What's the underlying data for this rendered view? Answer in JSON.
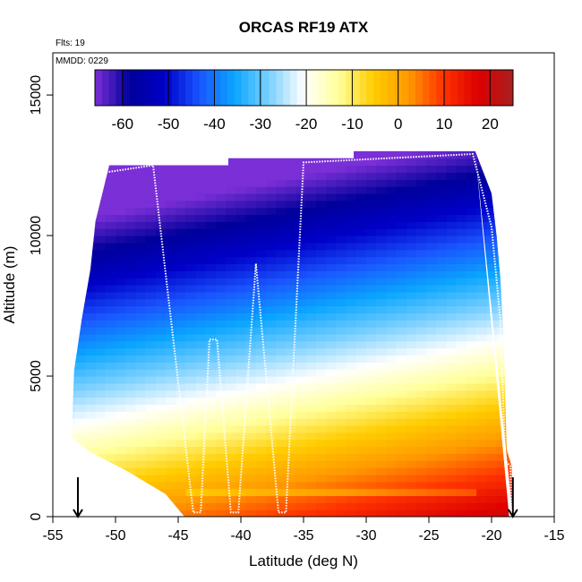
{
  "chart_data": {
    "type": "heatmap",
    "title": "ORCAS RF19 ATX",
    "xlabel": "Latitude (deg N)",
    "ylabel": "Altitude (m)",
    "xlim": [
      -55,
      -15
    ],
    "ylim": [
      0,
      16500
    ],
    "x_ticks": [
      "-55",
      "-50",
      "-45",
      "-40",
      "-35",
      "-30",
      "-25",
      "-20",
      "-15"
    ],
    "x_tick_values": [
      -55,
      -50,
      -45,
      -40,
      -35,
      -30,
      -25,
      -20,
      -15
    ],
    "y_ticks": [
      "0",
      "5000",
      "10000",
      "15000"
    ],
    "y_tick_values": [
      0,
      5000,
      10000,
      15000
    ],
    "flights_note": "Flts: 19",
    "date_note": "MMDD: 0229",
    "colorbar": {
      "range": [
        -66,
        25
      ],
      "ticks": [
        "-60",
        "-50",
        "-40",
        "-30",
        "-20",
        "-10",
        "0",
        "10",
        "20"
      ],
      "tick_values": [
        -60,
        -50,
        -40,
        -30,
        -20,
        -10,
        0,
        10,
        20
      ],
      "colors": [
        "#7b2fd6",
        "#00009a",
        "#0000c8",
        "#1a55ff",
        "#0aa5ff",
        "#7ad0ff",
        "#ffffff",
        "#ffff9a",
        "#ffcc00",
        "#ff9900",
        "#ff3300",
        "#dd0000",
        "#a82020"
      ]
    },
    "temperature_model": {
      "surface_temp_south": 0,
      "surface_temp_north": 20,
      "lapse_rate_per_km": -6.3
    },
    "domain_bottom_edge": [
      {
        "lat": -53.5,
        "alt": 2800
      },
      {
        "lat": -52,
        "alt": 2300
      },
      {
        "lat": -49,
        "alt": 1600
      },
      {
        "lat": -46,
        "alt": 800
      },
      {
        "lat": -44.5,
        "alt": 0
      },
      {
        "lat": -18.6,
        "alt": 0
      }
    ],
    "domain_left_edge": [
      {
        "lat": -53.5,
        "alt": 2800
      },
      {
        "lat": -53.3,
        "alt": 5200
      },
      {
        "lat": -52.7,
        "alt": 7000
      },
      {
        "lat": -52.0,
        "alt": 8800
      },
      {
        "lat": -51.6,
        "alt": 10500
      },
      {
        "lat": -50.5,
        "alt": 12500
      }
    ],
    "domain_top_edge": [
      {
        "lat": -50.5,
        "alt": 12500
      },
      {
        "lat": -41,
        "alt": 12500
      },
      {
        "lat": -41,
        "alt": 12750
      },
      {
        "lat": -35,
        "alt": 12750
      },
      {
        "lat": -31,
        "alt": 12750
      },
      {
        "lat": -31,
        "alt": 13000
      },
      {
        "lat": -21.3,
        "alt": 13000
      }
    ],
    "domain_right_edge": [
      {
        "lat": -21.3,
        "alt": 13000
      },
      {
        "lat": -20.0,
        "alt": 11500
      },
      {
        "lat": -19.6,
        "alt": 10000
      },
      {
        "lat": -19.3,
        "alt": 8500
      },
      {
        "lat": -19.0,
        "alt": 6000
      },
      {
        "lat": -18.8,
        "alt": 2400
      },
      {
        "lat": -18.4,
        "alt": 1800
      },
      {
        "lat": -18.3,
        "alt": 0
      }
    ],
    "flight_track": [
      {
        "lat": -52.5,
        "alt": 10500
      },
      {
        "lat": -51.5,
        "alt": 12200
      },
      {
        "lat": -47,
        "alt": 12500
      },
      {
        "lat": -43.8,
        "alt": 150
      },
      {
        "lat": -43.2,
        "alt": 150
      },
      {
        "lat": -42.5,
        "alt": 6300
      },
      {
        "lat": -41.9,
        "alt": 6300
      },
      {
        "lat": -40.8,
        "alt": 150
      },
      {
        "lat": -40.2,
        "alt": 150
      },
      {
        "lat": -38.8,
        "alt": 9000
      },
      {
        "lat": -37.0,
        "alt": 150
      },
      {
        "lat": -36.4,
        "alt": 150
      },
      {
        "lat": -35.0,
        "alt": 12600
      },
      {
        "lat": -21.5,
        "alt": 12900
      },
      {
        "lat": -20.0,
        "alt": 10300
      },
      {
        "lat": -19.3,
        "alt": 7000
      },
      {
        "lat": -18.9,
        "alt": 2000
      },
      {
        "lat": -18.5,
        "alt": 1800
      },
      {
        "lat": -18.4,
        "alt": 150
      }
    ],
    "arrows": [
      {
        "lat": -53.0,
        "alt_top": 700,
        "alt_bottom": 0
      },
      {
        "lat": -18.3,
        "alt_top": 700,
        "alt_bottom": 0
      }
    ],
    "boundary_layer_band": {
      "lat_min": -44.5,
      "lat_max": -21,
      "alt_min": 700,
      "alt_max": 1000
    }
  }
}
